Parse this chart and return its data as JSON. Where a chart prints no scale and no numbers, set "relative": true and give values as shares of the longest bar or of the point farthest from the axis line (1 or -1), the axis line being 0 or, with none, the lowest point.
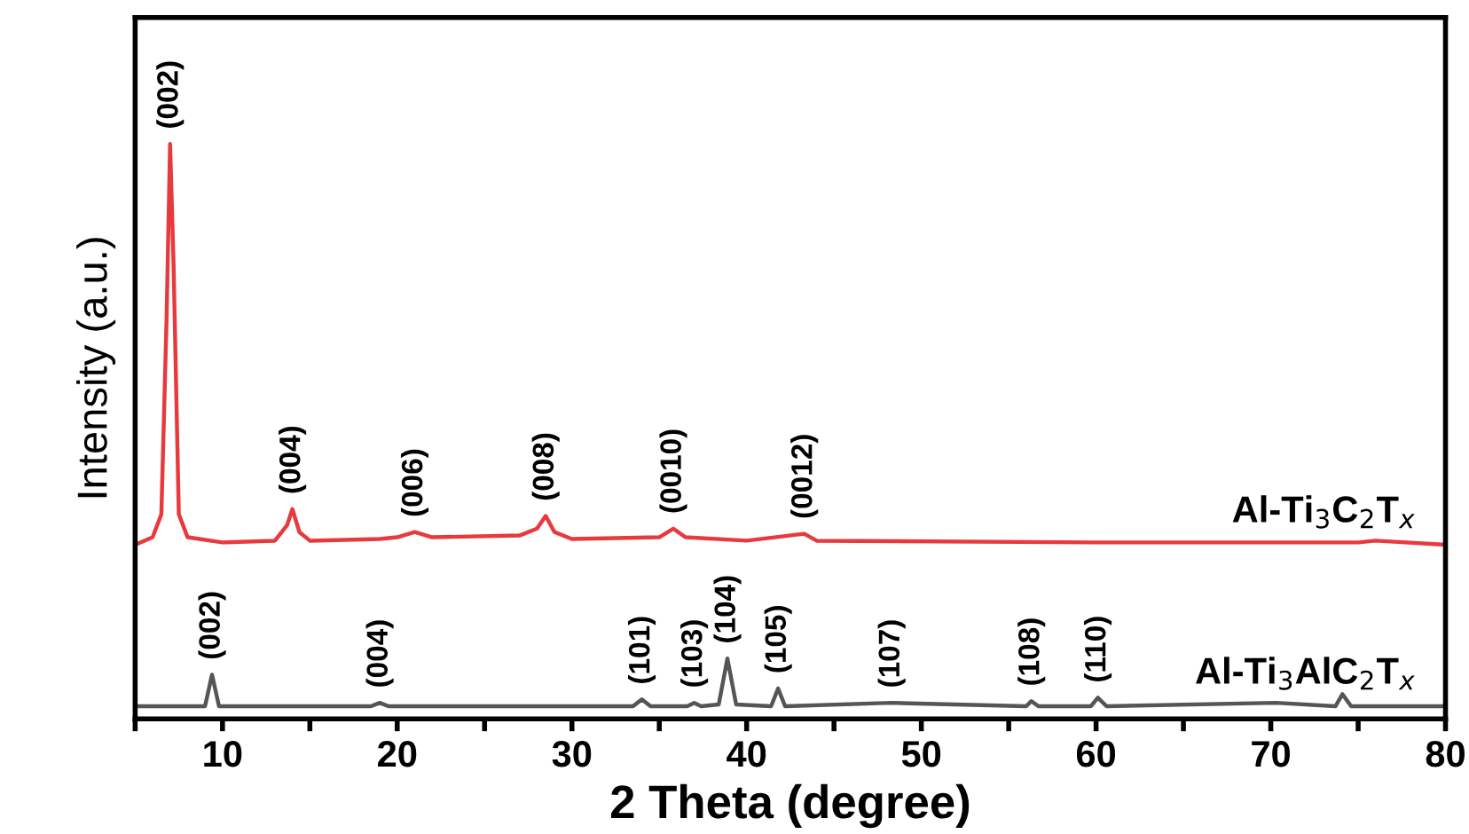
{
  "chart_data": {
    "type": "line",
    "relative": true,
    "xlabel": "2 Theta (degree)",
    "ylabel": "Intensity (a.u.)",
    "xlim": [
      5,
      80
    ],
    "xticks": [
      {
        "value": 5,
        "label": null
      },
      10,
      {
        "value": 15,
        "label": null
      },
      20,
      {
        "value": 25,
        "label": null
      },
      30,
      {
        "value": 35,
        "label": null
      },
      40,
      {
        "value": 45,
        "label": null
      },
      50,
      {
        "value": 55,
        "label": null
      },
      60,
      {
        "value": 65,
        "label": null
      },
      70,
      {
        "value": 75,
        "label": null
      },
      80
    ],
    "tick_labels": "x",
    "grid": false,
    "legend": false,
    "marker": "none",
    "line_style": "solid",
    "series": [
      {
        "name": "Al-Ti$_{3}$C$_{2}$T$_{x}$",
        "color": "#e8393d",
        "x": [
          5,
          6,
          6.5,
          6.8,
          7.0,
          7.2,
          7.5,
          8,
          10,
          13,
          13.7,
          14.0,
          14.4,
          15,
          19,
          20,
          21,
          22,
          27,
          28,
          28.5,
          29,
          30,
          35,
          35.8,
          36.5,
          40,
          43.3,
          44,
          60,
          75,
          76,
          80
        ],
        "values": [
          0.303,
          0.316,
          0.356,
          0.697,
          1,
          0.789,
          0.356,
          0.316,
          0.307,
          0.31,
          0.337,
          0.365,
          0.325,
          0.31,
          0.313,
          0.316,
          0.325,
          0.316,
          0.319,
          0.331,
          0.353,
          0.325,
          0.313,
          0.316,
          0.331,
          0.316,
          0.31,
          0.322,
          0.31,
          0.307,
          0.307,
          0.31,
          0.303
        ]
      },
      {
        "name": "Al-Ti$_{3}$AlC$_{2}$T$_{x}$",
        "color": "#555555",
        "x": [
          5,
          9,
          9.4,
          9.8,
          18.5,
          19,
          19.5,
          33.5,
          34,
          34.5,
          36.6,
          37,
          37.4,
          38.4,
          38.9,
          39.4,
          41.4,
          41.8,
          42.2,
          48.3,
          56,
          56.3,
          56.7,
          59.7,
          60.1,
          60.6,
          70.3,
          73.7,
          74.1,
          74.6,
          80
        ],
        "values": [
          0.022,
          0.022,
          0.077,
          0.022,
          0.022,
          0.028,
          0.022,
          0.022,
          0.034,
          0.022,
          0.022,
          0.028,
          0.022,
          0.025,
          0.105,
          0.025,
          0.022,
          0.053,
          0.022,
          0.028,
          0.022,
          0.031,
          0.022,
          0.022,
          0.037,
          0.022,
          0.028,
          0.022,
          0.043,
          0.022,
          0.022
        ]
      }
    ],
    "annotations": [
      {
        "text": "(002)",
        "x": 7.0,
        "y": 1
      },
      {
        "text": "(004)",
        "x": 14.0,
        "y": 0.365
      },
      {
        "text": "(006)",
        "x": 21,
        "y": 0.325
      },
      {
        "text": "(008)",
        "x": 28.5,
        "y": 0.353
      },
      {
        "text": "(0010)",
        "x": 35.8,
        "y": 0.331
      },
      {
        "text": "(0012)",
        "x": 43.3,
        "y": 0.322
      },
      {
        "text": "(002)",
        "x": 9.4,
        "y": 0.077
      },
      {
        "text": "(004)",
        "x": 19,
        "y": 0.028
      },
      {
        "text": "(101)",
        "x": 34,
        "y": 0.034
      },
      {
        "text": "(103)",
        "x": 37,
        "y": 0.028
      },
      {
        "text": "(104)",
        "x": 38.9,
        "y": 0.105
      },
      {
        "text": "(105)",
        "x": 41.8,
        "y": 0.053
      },
      {
        "text": "(107)",
        "x": 48.3,
        "y": 0.028
      },
      {
        "text": "(108)",
        "x": 56.3,
        "y": 0.031
      },
      {
        "text": "(110)",
        "x": 60.1,
        "y": 0.037
      }
    ]
  }
}
